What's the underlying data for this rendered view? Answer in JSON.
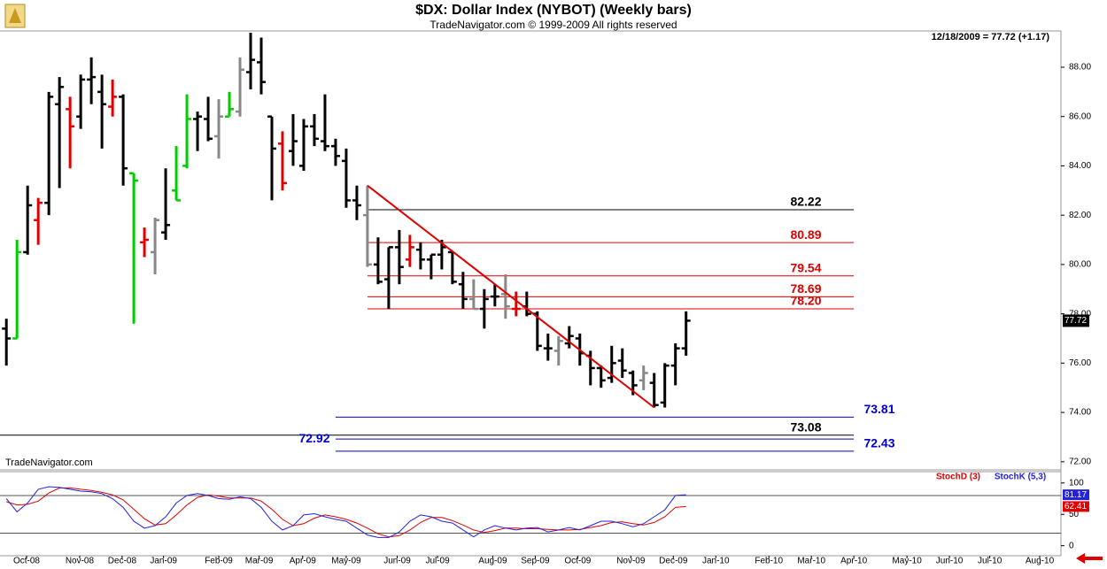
{
  "chart_data": [
    {
      "type": "ohlc",
      "title": "$DX:  Dollar Index (NYBOT)  (Weekly bars)",
      "subtitle": "TradeNavigator.com © 1999-2009 All rights reserved",
      "watermark": "TradeNavigator.com",
      "status": "12/18/2009 = 77.72 (+1.17)",
      "open": [
        77.4,
        77.0,
        80.5,
        81.8,
        82.5,
        86.5,
        86.3,
        86.0,
        87.5,
        87.0,
        86.4,
        86.8,
        83.7,
        80.9,
        80.5,
        81.3,
        83.0,
        84.0,
        85.9,
        85.9,
        85.2,
        86.0,
        86.2,
        87.8,
        88.2,
        86.0,
        84.9,
        84.6,
        84.0,
        85.6,
        85.0,
        84.8,
        84.2,
        82.6,
        82.0,
        80.0,
        79.4,
        80.7,
        80.2,
        80.6,
        80.2,
        80.4,
        80.5,
        79.2,
        78.6,
        78.2,
        78.7,
        78.8,
        78.2,
        78.3,
        78.0,
        76.6,
        76.5,
        76.8,
        77.0,
        76.3,
        75.8,
        75.4,
        76.1,
        75.6,
        75.3,
        75.2,
        74.4,
        75.9,
        76.6
      ],
      "high": [
        77.8,
        81.0,
        83.2,
        82.7,
        87.0,
        87.6,
        86.8,
        87.7,
        88.4,
        87.7,
        87.5,
        86.9,
        83.7,
        81.5,
        81.9,
        83.9,
        84.8,
        86.9,
        86.2,
        86.8,
        86.7,
        87.0,
        88.4,
        89.4,
        89.2,
        86.0,
        85.4,
        86.1,
        85.9,
        86.1,
        86.9,
        85.1,
        84.7,
        83.2,
        83.2,
        81.1,
        80.7,
        81.4,
        81.2,
        80.9,
        80.4,
        81.0,
        80.5,
        79.7,
        79.4,
        79.0,
        79.2,
        79.6,
        78.9,
        78.9,
        78.1,
        77.2,
        77.1,
        77.5,
        77.2,
        76.5,
        75.9,
        76.7,
        76.6,
        75.7,
        75.9,
        75.6,
        76.0,
        76.8,
        78.1
      ],
      "low": [
        75.9,
        77.0,
        80.4,
        80.8,
        82.0,
        83.1,
        83.9,
        85.5,
        86.5,
        84.7,
        86.0,
        83.2,
        77.6,
        80.3,
        79.6,
        81.0,
        82.6,
        83.9,
        84.6,
        85.0,
        84.3,
        86.0,
        86.0,
        87.1,
        86.9,
        82.6,
        83.0,
        84.0,
        83.8,
        84.8,
        84.6,
        84.0,
        82.3,
        81.8,
        79.9,
        79.2,
        78.2,
        79.2,
        79.9,
        79.8,
        79.4,
        79.8,
        79.2,
        78.2,
        78.2,
        77.4,
        78.3,
        77.8,
        77.9,
        77.9,
        76.5,
        76.1,
        75.9,
        76.6,
        75.9,
        75.1,
        75.0,
        75.2,
        75.4,
        74.7,
        74.9,
        74.2,
        74.2,
        75.1,
        76.3
      ],
      "close": [
        77.0,
        80.5,
        82.4,
        82.5,
        86.8,
        87.2,
        85.6,
        87.5,
        87.6,
        86.5,
        86.8,
        83.9,
        83.4,
        81.0,
        81.8,
        81.6,
        82.6,
        85.9,
        86.0,
        85.1,
        86.0,
        86.3,
        87.9,
        88.3,
        87.4,
        84.7,
        83.3,
        85.0,
        85.6,
        85.1,
        84.8,
        84.4,
        82.6,
        82.4,
        80.0,
        79.3,
        80.7,
        79.9,
        80.7,
        80.2,
        80.4,
        80.7,
        79.3,
        78.6,
        78.2,
        78.6,
        78.7,
        78.3,
        78.2,
        78.0,
        76.7,
        76.6,
        76.9,
        77.1,
        76.4,
        75.8,
        75.3,
        76.0,
        75.7,
        75.1,
        75.6,
        74.3,
        75.9,
        76.6,
        77.72
      ],
      "colors": [
        "#000000",
        "#00cc00",
        "#000000",
        "#e00000",
        "#000000",
        "#000000",
        "#e00000",
        "#000000",
        "#000000",
        "#000000",
        "#e00000",
        "#000000",
        "#00cc00",
        "#e00000",
        "#888888",
        "#000000",
        "#00cc00",
        "#00cc00",
        "#000000",
        "#000000",
        "#888888",
        "#00cc00",
        "#888888",
        "#000000",
        "#000000",
        "#000000",
        "#e00000",
        "#000000",
        "#000000",
        "#000000",
        "#000000",
        "#000000",
        "#000000",
        "#000000",
        "#888888",
        "#000000",
        "#000000",
        "#000000",
        "#e00000",
        "#000000",
        "#000000",
        "#000000",
        "#000000",
        "#000000",
        "#888888",
        "#000000",
        "#000000",
        "#888888",
        "#e00000",
        "#000000",
        "#000000",
        "#000000",
        "#888888",
        "#000000",
        "#000000",
        "#000000",
        "#000000",
        "#000000",
        "#000000",
        "#000000",
        "#888888",
        "#000000",
        "#000000",
        "#000000",
        "#000000"
      ],
      "ylim": [
        71.67,
        89.47
      ],
      "yticks": [
        {
          "value": 72,
          "label": "72.00"
        },
        {
          "value": 74,
          "label": "74.00"
        },
        {
          "value": 76,
          "label": "76.00"
        },
        {
          "value": 78,
          "label": "78.00"
        },
        {
          "value": 80,
          "label": "80.00"
        },
        {
          "value": 82,
          "label": "82.00"
        },
        {
          "value": 84,
          "label": "84.00"
        },
        {
          "value": 86,
          "label": "86.00"
        },
        {
          "value": 88,
          "label": "88.00"
        }
      ],
      "trendline": {
        "x": [
          34,
          61
        ],
        "y": [
          83.2,
          74.2
        ],
        "color": "#e00000"
      },
      "levels": [
        {
          "value": 82.22,
          "label": "82.22",
          "color": "#000000"
        },
        {
          "value": 80.89,
          "label": "80.89",
          "color": "#e00000"
        },
        {
          "value": 79.54,
          "label": "79.54",
          "color": "#e00000"
        },
        {
          "value": 78.69,
          "label": "78.69",
          "color": "#e00000"
        },
        {
          "value": 78.2,
          "label": "78.20",
          "color": "#e00000"
        },
        {
          "value": 73.81,
          "label": "73.81",
          "color": "#0000cc"
        },
        {
          "value": 73.08,
          "label": "73.08",
          "color": "#000000"
        },
        {
          "value": 72.92,
          "label": "72.92",
          "color": "#0000cc"
        },
        {
          "value": 72.43,
          "label": "72.43",
          "color": "#0000cc"
        }
      ]
    },
    {
      "type": "line",
      "series": [
        {
          "name": "StochD (3)",
          "color": "#e00000",
          "values": [
            70,
            65,
            66,
            71,
            84,
            92,
            92,
            90,
            88,
            85,
            81,
            73,
            58,
            43,
            33,
            35,
            49,
            65,
            77,
            81,
            79,
            76,
            76,
            76,
            71,
            58,
            42,
            32,
            35,
            44,
            49,
            46,
            42,
            36,
            28,
            19,
            14,
            16,
            25,
            37,
            45,
            45,
            40,
            33,
            25,
            21,
            24,
            28,
            28,
            27,
            27,
            26,
            25,
            25,
            26,
            29,
            32,
            37,
            38,
            35,
            33,
            37,
            46,
            61,
            62.41
          ]
        },
        {
          "name": "StochK (5,3)",
          "color": "#2222dd",
          "values": [
            75,
            54,
            68,
            90,
            94,
            93,
            90,
            87,
            86,
            83,
            75,
            61,
            39,
            28,
            32,
            46,
            68,
            80,
            83,
            80,
            75,
            74,
            78,
            75,
            61,
            39,
            25,
            32,
            49,
            51,
            46,
            42,
            39,
            28,
            17,
            13,
            13,
            22,
            39,
            49,
            46,
            39,
            36,
            25,
            14,
            25,
            32,
            28,
            25,
            28,
            29,
            22,
            25,
            29,
            25,
            32,
            39,
            39,
            35,
            30,
            35,
            46,
            57,
            80,
            81.17
          ]
        }
      ],
      "ylim": [
        -16,
        118
      ],
      "yticks": [
        0,
        50,
        100
      ],
      "ref_lines": [
        20,
        80
      ],
      "xlim": [
        -0.6,
        99.3
      ],
      "xticks": [
        {
          "value": 1.9,
          "label": "Oct-08"
        },
        {
          "value": 6.9,
          "label": "Nov-08"
        },
        {
          "value": 10.9,
          "label": "Dec-08"
        },
        {
          "value": 14.8,
          "label": "Jan-09"
        },
        {
          "value": 20,
          "label": "Feb-09"
        },
        {
          "value": 23.8,
          "label": "Mar-09"
        },
        {
          "value": 27.9,
          "label": "Apr-09"
        },
        {
          "value": 32,
          "label": "May-09"
        },
        {
          "value": 36.8,
          "label": "Jun-09"
        },
        {
          "value": 40.6,
          "label": "Jul-09"
        },
        {
          "value": 45.8,
          "label": "Aug-09"
        },
        {
          "value": 49.8,
          "label": "Sep-09"
        },
        {
          "value": 53.8,
          "label": "Oct-09"
        },
        {
          "value": 58.8,
          "label": "Nov-09"
        },
        {
          "value": 62.8,
          "label": "Dec-09"
        },
        {
          "value": 66.8,
          "label": "Jan-10"
        },
        {
          "value": 71.8,
          "label": "Feb-10"
        },
        {
          "value": 75.8,
          "label": "Mar-10"
        },
        {
          "value": 79.8,
          "label": "Apr-10"
        },
        {
          "value": 84.8,
          "label": "May-10"
        },
        {
          "value": 88.8,
          "label": "Jun-10"
        },
        {
          "value": 92.6,
          "label": "Jul-10"
        },
        {
          "value": 97.3,
          "label": "Aug-10"
        }
      ]
    }
  ]
}
